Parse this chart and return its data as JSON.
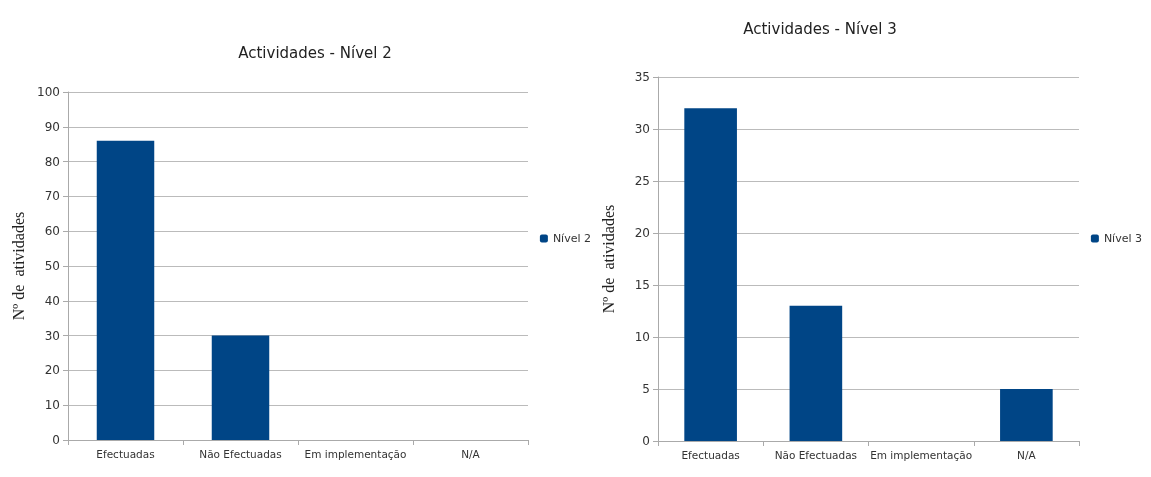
{
  "chart_data": [
    {
      "type": "bar",
      "title": "Actividades - Nível 2",
      "ylabel": "Nº de  atividades",
      "categories": [
        "Efectuadas",
        "Não Efectuadas",
        "Em implementação",
        "N/A"
      ],
      "series": [
        {
          "name": "Nível 2",
          "color": "#004586",
          "values": [
            86,
            30,
            0,
            0
          ]
        }
      ],
      "ylim": [
        0,
        100
      ],
      "yticks": [
        0,
        10,
        20,
        30,
        40,
        50,
        60,
        70,
        80,
        90,
        100
      ],
      "grid": "y",
      "legend": "right"
    },
    {
      "type": "bar",
      "title": "Actividades - Nível 3",
      "ylabel": "Nº de  atividades",
      "categories": [
        "Efectuadas",
        "Não Efectuadas",
        "Em implementação",
        "N/A"
      ],
      "series": [
        {
          "name": "Nível 3",
          "color": "#004586",
          "values": [
            32,
            13,
            0,
            5
          ]
        }
      ],
      "ylim": [
        0,
        35
      ],
      "yticks": [
        0,
        5,
        10,
        15,
        20,
        25,
        30,
        35
      ],
      "grid": "y",
      "legend": "right"
    }
  ]
}
